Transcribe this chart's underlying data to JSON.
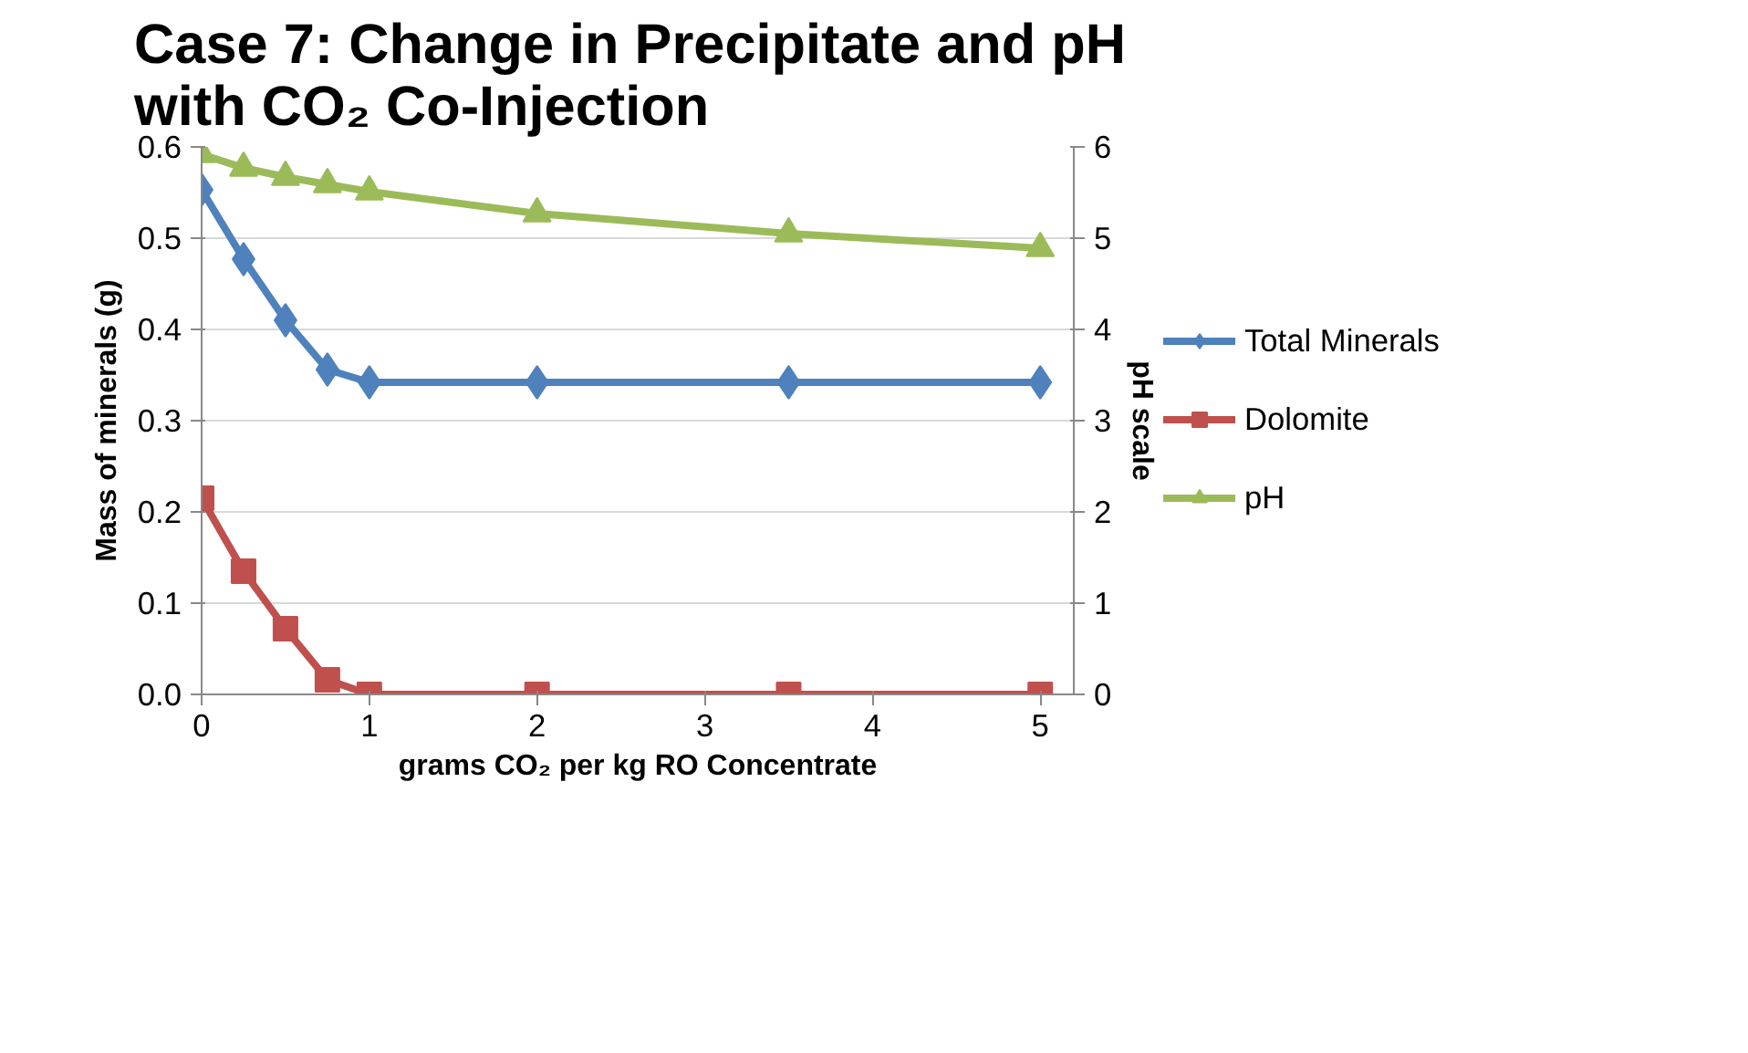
{
  "chart_data": {
    "type": "line",
    "title": "Case 7:  Change in Precipitate and pH\nwith CO₂ Co-Injection",
    "xlabel": "grams CO₂ per kg RO Concentrate",
    "ylabel": "Mass of minerals (g)",
    "y2label": "pH scale",
    "x": [
      0,
      0.25,
      0.5,
      0.75,
      1,
      2,
      3.5,
      5
    ],
    "series": [
      {
        "name": "Total Minerals",
        "color": "#4f81bd",
        "marker": "diamond",
        "values": [
          0.553,
          0.477,
          0.41,
          0.356,
          0.342,
          0.342,
          0.342,
          0.342
        ]
      },
      {
        "name": "Dolomite",
        "color": "#c0504d",
        "marker": "square",
        "values": [
          0.215,
          0.135,
          0.072,
          0.016,
          0,
          0,
          0,
          0
        ]
      },
      {
        "name": "pH",
        "color": "#9bbb59",
        "marker": "triangle",
        "axis": "y2",
        "values": [
          5.92,
          5.77,
          5.67,
          5.59,
          5.51,
          5.27,
          5.05,
          4.89
        ]
      }
    ],
    "xlim": [
      0,
      5.2
    ],
    "xticks": [
      0,
      1,
      2,
      3,
      4,
      5
    ],
    "ylim": [
      0,
      0.6
    ],
    "yticks": [
      {
        "value": 0,
        "label": "0.0"
      },
      0.1,
      0.2,
      0.3,
      0.4,
      0.5,
      0.6
    ],
    "y2lim": [
      0,
      6
    ],
    "y2ticks": [
      0,
      1,
      2,
      3,
      4,
      5,
      6
    ],
    "grid": "y",
    "legend": "right"
  }
}
